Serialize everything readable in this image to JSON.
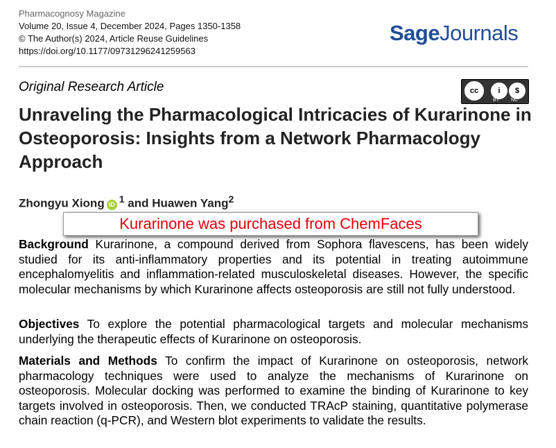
{
  "meta": {
    "journal": "Pharmacognosy Magazine",
    "issue": "Volume 20, Issue 4, December 2024, Pages 1350-1358",
    "copyright": "© The Author(s) 2024, Article Reuse Guidelines",
    "doi": "https://doi.org/10.1177/09731296241259563"
  },
  "logo": {
    "part1": "Sage",
    "part2": "Journals"
  },
  "article_type": "Original Research Article",
  "license": {
    "cc": "cc",
    "by": "BY",
    "nc": "NC"
  },
  "title": "Unraveling the Pharmacological Intricacies of Kurarinone in Osteoporosis: Insights from a Network Pharmacology Approach",
  "authors": {
    "a1": "Zhongyu Xiong",
    "sup1": "1",
    "and": " and Huawen Yang",
    "sup2": "2",
    "orcid": "iD"
  },
  "sections": [
    {
      "head": "Background",
      "text": " Kurarinone, a compound derived from Sophora flavescens, has been widely studied for its anti-inflammatory properties and its potential in treating autoimmune encephalomyelitis and inflammation-related musculoskeletal diseases. However, the specific molecular mechanisms by which Kurarinone affects osteoporosis are still not fully understood."
    },
    {
      "head": "Objectives",
      "text": " To explore the potential pharmacological targets and molecular mechanisms underlying the therapeutic effects of Kurarinone on osteoporosis."
    },
    {
      "head": "Materials and Methods",
      "text": " To confirm the impact of Kurarinone on osteoporosis, network pharmacology techniques were used to analyze the mechanisms of Kurarinone on osteoporosis. Molecular docking was performed to examine the binding of Kurarinone to key targets involved in osteoporosis. Then, we conducted TRAcP staining, quantitative polymerase chain reaction (q-PCR), and Western blot experiments to validate the results."
    }
  ],
  "overlay": {
    "text": "Kurarinone was purchased from ChemFaces",
    "color": "#e8000b"
  }
}
